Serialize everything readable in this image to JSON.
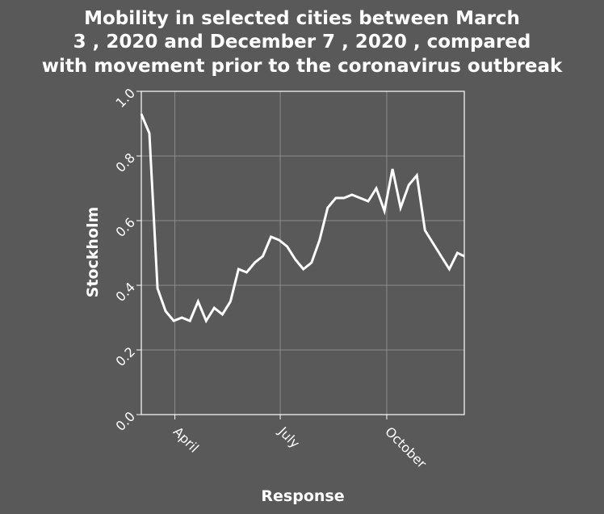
{
  "chart_data": {
    "type": "line",
    "title_lines": [
      "Mobility in selected cities between March",
      "3 , 2020 and December 7 , 2020 , compared",
      "with movement prior to the coronavirus outbreak"
    ],
    "xlabel": "Response",
    "ylabel": "Stockholm",
    "xlim": [
      "2020-03-03",
      "2020-12-07"
    ],
    "ylim": [
      0.0,
      1.0
    ],
    "x_ticks": [
      {
        "label": "April",
        "date": "2020-04-01"
      },
      {
        "label": "July",
        "date": "2020-07-01"
      },
      {
        "label": "October",
        "date": "2020-10-01"
      }
    ],
    "y_ticks": [
      "0.0",
      "0.2",
      "0.4",
      "0.6",
      "0.8",
      "1.0"
    ],
    "grid": true,
    "line_color": "#ffffff",
    "background_color": "#595959",
    "plot_background_color": "#595959",
    "grid_color": "#8c8c8c",
    "series": [
      {
        "points": [
          [
            "2020-03-03",
            0.93
          ],
          [
            "2020-03-10",
            0.87
          ],
          [
            "2020-03-17",
            0.39
          ],
          [
            "2020-03-24",
            0.32
          ],
          [
            "2020-03-31",
            0.29
          ],
          [
            "2020-04-07",
            0.3
          ],
          [
            "2020-04-14",
            0.29
          ],
          [
            "2020-04-21",
            0.35
          ],
          [
            "2020-04-28",
            0.29
          ],
          [
            "2020-05-05",
            0.33
          ],
          [
            "2020-05-12",
            0.31
          ],
          [
            "2020-05-19",
            0.35
          ],
          [
            "2020-05-26",
            0.45
          ],
          [
            "2020-06-02",
            0.44
          ],
          [
            "2020-06-09",
            0.47
          ],
          [
            "2020-06-16",
            0.49
          ],
          [
            "2020-06-23",
            0.55
          ],
          [
            "2020-06-30",
            0.54
          ],
          [
            "2020-07-07",
            0.52
          ],
          [
            "2020-07-14",
            0.48
          ],
          [
            "2020-07-21",
            0.45
          ],
          [
            "2020-07-28",
            0.47
          ],
          [
            "2020-08-04",
            0.54
          ],
          [
            "2020-08-11",
            0.64
          ],
          [
            "2020-08-18",
            0.67
          ],
          [
            "2020-08-25",
            0.67
          ],
          [
            "2020-09-01",
            0.68
          ],
          [
            "2020-09-08",
            0.67
          ],
          [
            "2020-09-15",
            0.66
          ],
          [
            "2020-09-22",
            0.7
          ],
          [
            "2020-09-29",
            0.63
          ],
          [
            "2020-10-06",
            0.76
          ],
          [
            "2020-10-13",
            0.64
          ],
          [
            "2020-10-20",
            0.71
          ],
          [
            "2020-10-27",
            0.74
          ],
          [
            "2020-11-03",
            0.57
          ],
          [
            "2020-11-10",
            0.53
          ],
          [
            "2020-11-17",
            0.49
          ],
          [
            "2020-11-24",
            0.45
          ],
          [
            "2020-12-01",
            0.5
          ],
          [
            "2020-12-07",
            0.49
          ]
        ]
      }
    ]
  }
}
